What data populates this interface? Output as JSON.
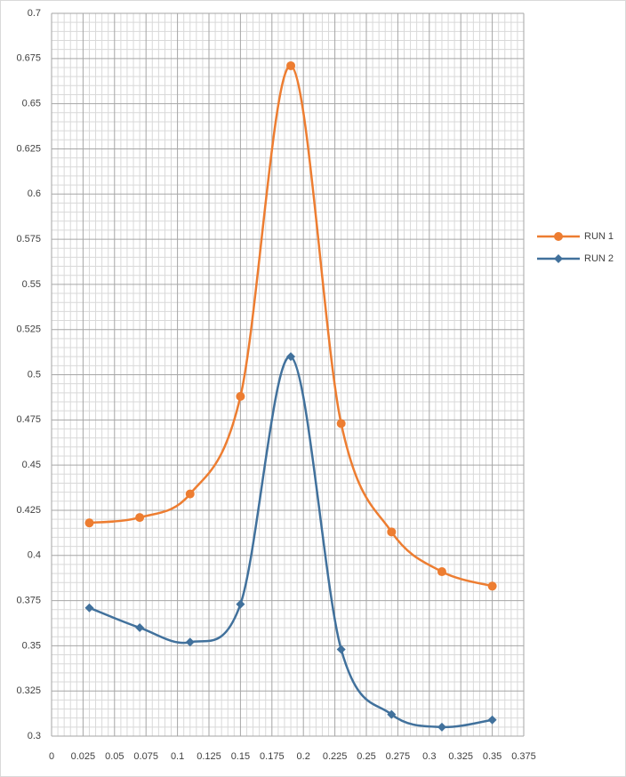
{
  "chart_data": {
    "type": "line",
    "x": [
      0.03,
      0.07,
      0.11,
      0.15,
      0.19,
      0.23,
      0.27,
      0.31,
      0.35
    ],
    "series": [
      {
        "name": "RUN 1",
        "color": "#ED7D31",
        "marker": "circle",
        "values": [
          0.418,
          0.421,
          0.434,
          0.488,
          0.671,
          0.473,
          0.413,
          0.391,
          0.383
        ]
      },
      {
        "name": "RUN 2",
        "color": "#41719C",
        "marker": "diamond",
        "values": [
          0.371,
          0.36,
          0.352,
          0.373,
          0.51,
          0.348,
          0.312,
          0.305,
          0.309
        ]
      }
    ],
    "smooth": true,
    "xlim": [
      0,
      0.375
    ],
    "xticks": [
      0,
      0.025,
      0.05,
      0.075,
      0.1,
      0.125,
      0.15,
      0.175,
      0.2,
      0.225,
      0.25,
      0.275,
      0.3,
      0.325,
      0.35,
      0.375
    ],
    "ylim": [
      0.3,
      0.7
    ],
    "yticks": [
      0.3,
      0.325,
      0.35,
      0.375,
      0.4,
      0.425,
      0.45,
      0.475,
      0.5,
      0.525,
      0.55,
      0.575,
      0.6,
      0.625,
      0.65,
      0.675,
      0.7
    ],
    "grid": true,
    "minor_grid": true,
    "legend": "right"
  }
}
